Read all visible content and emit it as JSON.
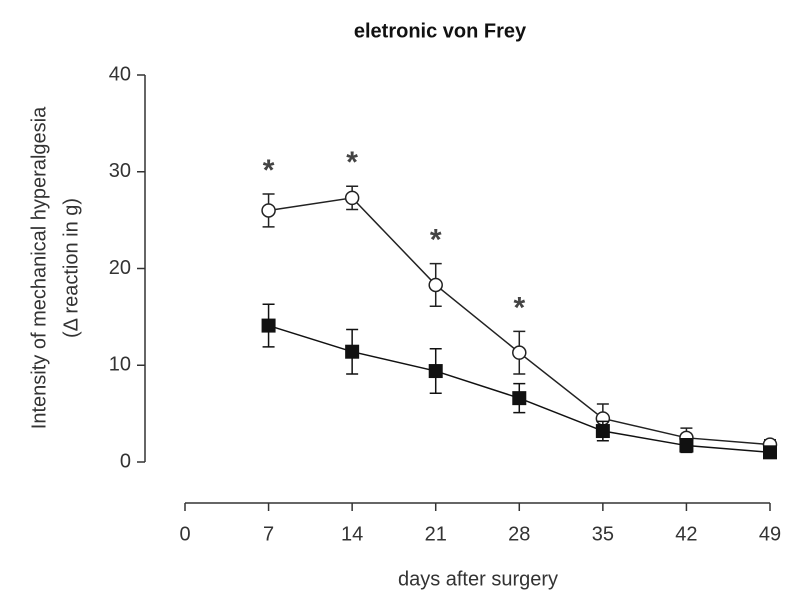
{
  "chart_data": {
    "type": "line",
    "title": "eletronic von Frey",
    "xlabel": "days after surgery",
    "ylabel": [
      "Intensity of mechanical hyperalgesia",
      "(Δ reaction in g)"
    ],
    "x": [
      7,
      14,
      21,
      28,
      35,
      42,
      49
    ],
    "series": [
      {
        "marker": "circle-open",
        "color": "#222",
        "values": [
          26.0,
          27.3,
          18.3,
          11.3,
          4.5,
          2.5,
          1.8
        ],
        "errors": [
          1.7,
          1.2,
          2.2,
          2.2,
          1.5,
          1.0,
          0.5
        ]
      },
      {
        "marker": "square-filled",
        "color": "#111",
        "values": [
          14.1,
          11.4,
          9.4,
          6.6,
          3.2,
          1.7,
          1.0
        ],
        "errors": [
          2.2,
          2.3,
          2.3,
          1.5,
          1.0,
          0.7,
          0.4
        ]
      }
    ],
    "annotations": [
      {
        "text": "*",
        "x": 7
      },
      {
        "text": "*",
        "x": 14
      },
      {
        "text": "*",
        "x": 21
      },
      {
        "text": "*",
        "x": 28
      }
    ],
    "xlim": [
      0,
      49
    ],
    "xticks": [
      0,
      7,
      14,
      21,
      28,
      35,
      42,
      49
    ],
    "ylim": [
      0,
      40
    ],
    "yticks": [
      0,
      10,
      20,
      30,
      40
    ]
  }
}
